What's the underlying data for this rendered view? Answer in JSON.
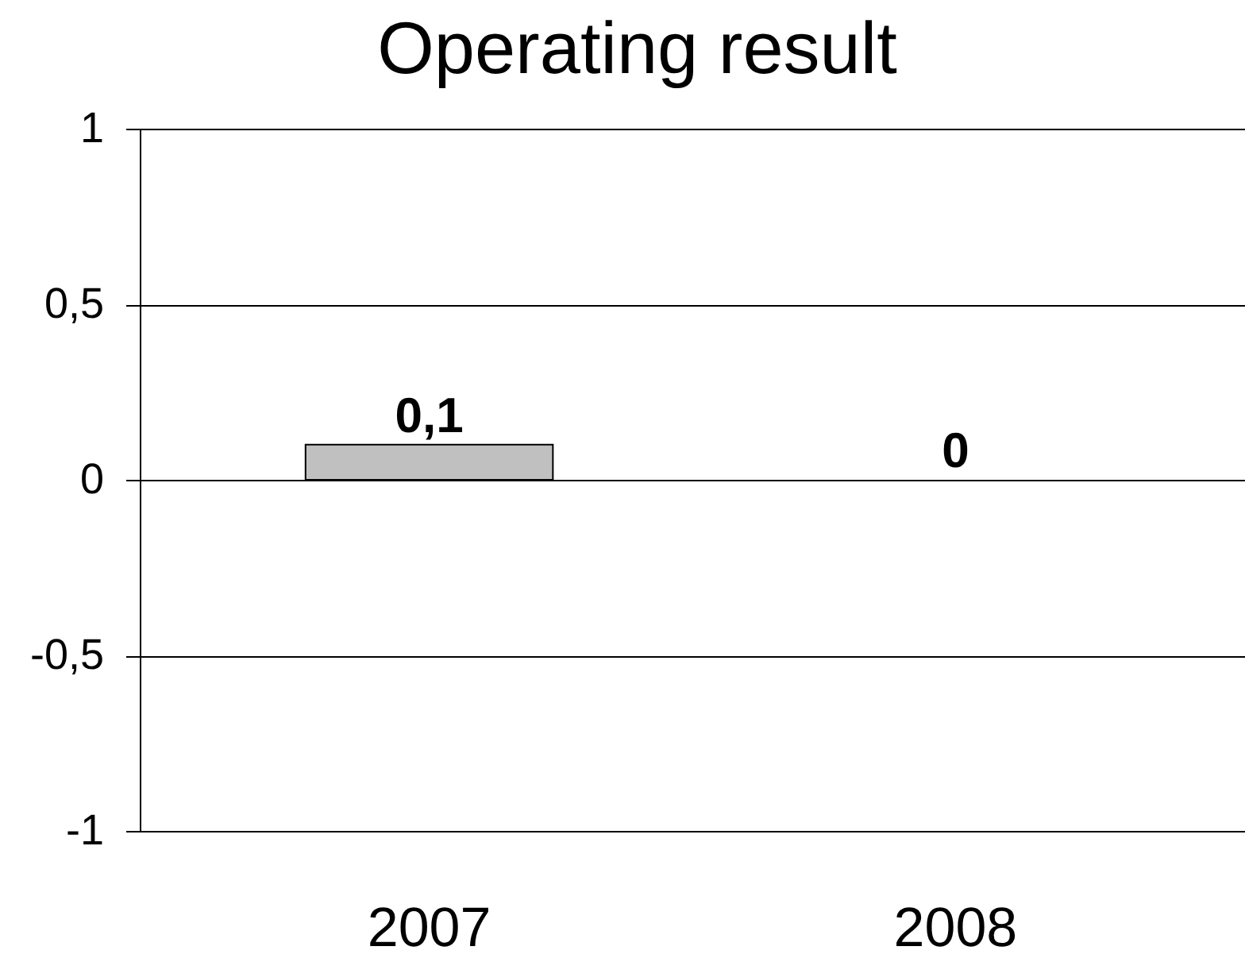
{
  "chart_data": {
    "type": "bar",
    "title": "Operating result",
    "categories": [
      "2007",
      "2008"
    ],
    "values": [
      0.1,
      0
    ],
    "value_labels": [
      "0,1",
      "0"
    ],
    "color": "#c0c0c0",
    "ylim": [
      -1,
      1
    ],
    "yticks": [
      -1,
      {
        "value": -0.5,
        "label": "-0,5"
      },
      0,
      {
        "value": 0.5,
        "label": "0,5"
      },
      1
    ],
    "grid": "y"
  }
}
